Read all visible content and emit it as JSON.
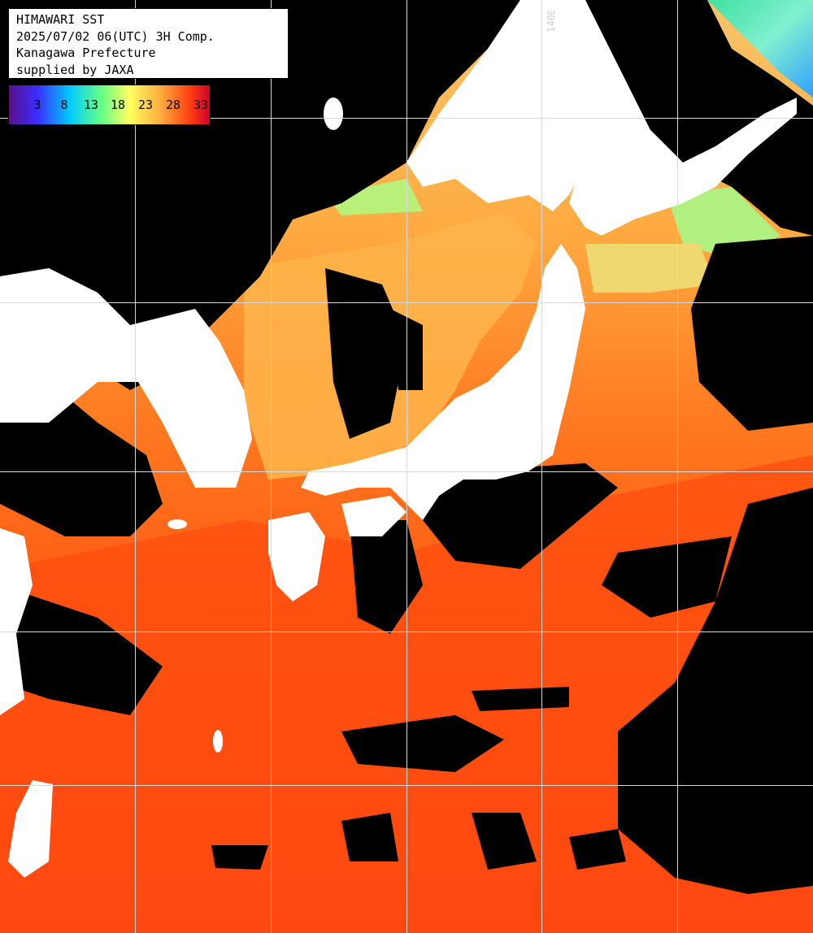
{
  "title_box": {
    "line1": "HIMAWARI SST",
    "line2": "2025/07/02 06(UTC) 3H Comp.",
    "line3": "Kanagawa Prefecture",
    "line4": "supplied by JAXA"
  },
  "legend": {
    "ticks": [
      "3",
      "8",
      "13",
      "18",
      "23",
      "28",
      "33"
    ],
    "colors": [
      "#5a0f8c",
      "#3a2cff",
      "#00c8ff",
      "#5cff8a",
      "#ffff60",
      "#ffb040",
      "#ff4010",
      "#d00030"
    ]
  },
  "graticule": {
    "lon_label": "140E"
  },
  "colors": {
    "land": "#ffffff",
    "cloud": "#000000",
    "grid": "#d8d8d8",
    "sst_warm": "#ff5a10",
    "sst_mid": "#ff9a2a",
    "sst_cool": "#f6d070",
    "sst_cold": "#60f0c0"
  }
}
